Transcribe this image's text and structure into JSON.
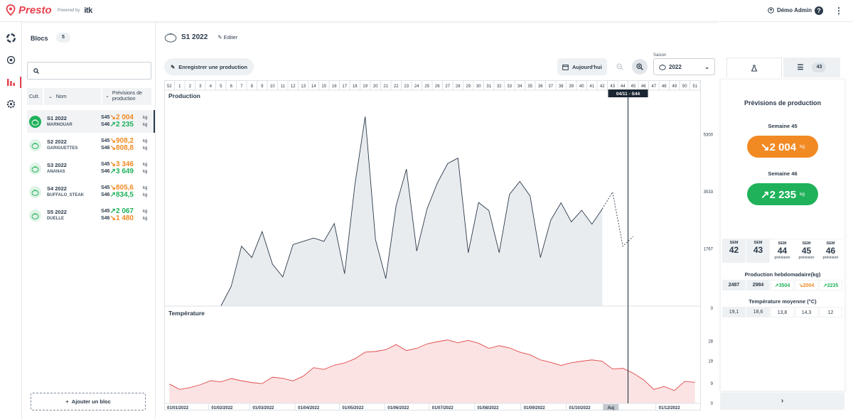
{
  "app": {
    "name": "Presto",
    "powered_by": "Powered by",
    "partner": "itk",
    "user": "Démo Admin",
    "help": "?",
    "menu": "⋮"
  },
  "blocs": {
    "title": "Blocs",
    "count": "5",
    "search_placeholder": "",
    "columns": {
      "cult": "Cult.",
      "name": "Nom",
      "forecast": "Prévisions de production"
    },
    "rows": [
      {
        "name": "S1 2022",
        "variety": "MARNOUAR",
        "w1": "S45",
        "v1": "↘2 004",
        "c1": "#f28a24",
        "w2": "S46",
        "v2": "↗2 235",
        "c2": "#1fb25a",
        "unit": "kg",
        "selected": true
      },
      {
        "name": "S2 2022",
        "variety": "GARIGUETTES",
        "w1": "S45",
        "v1": "↘908,2",
        "c1": "#f28a24",
        "w2": "S46",
        "v2": "↘808,8",
        "c2": "#f28a24",
        "unit": "kg",
        "selected": false
      },
      {
        "name": "S3 2022",
        "variety": "ANANAS",
        "w1": "S45",
        "v1": "↘3 346",
        "c1": "#f28a24",
        "w2": "S46",
        "v2": "↗3 649",
        "c2": "#1fb25a",
        "unit": "kg",
        "selected": false
      },
      {
        "name": "S4 2022",
        "variety": "BUFFALO_STEAK",
        "w1": "S45",
        "v1": "↘805,6",
        "c1": "#f28a24",
        "w2": "S46",
        "v2": "↗834,5",
        "c2": "#1fb25a",
        "unit": "kg",
        "selected": false
      },
      {
        "name": "S5 2022",
        "variety": "DUELLE",
        "w1": "S45",
        "v1": "↗2 067",
        "c1": "#1fb25a",
        "w2": "S46",
        "v2": "↘1 480",
        "c2": "#f28a24",
        "unit": "kg",
        "selected": false
      }
    ],
    "add_label": "Ajouter un bloc"
  },
  "main": {
    "title": "S1 2022",
    "edit_label": "Editer",
    "record_label": "Enregistrer une production",
    "today_label": "Aujourd'hui",
    "season_label": "Saison",
    "season_value": "2022"
  },
  "chart_data": {
    "type": "area",
    "week_ticks": [
      "52",
      "1",
      "2",
      "3",
      "4",
      "5",
      "6",
      "7",
      "8",
      "9",
      "10",
      "11",
      "12",
      "13",
      "14",
      "15",
      "16",
      "17",
      "18",
      "19",
      "20",
      "21",
      "22",
      "23",
      "24",
      "25",
      "26",
      "27",
      "28",
      "29",
      "30",
      "31",
      "32",
      "33",
      "34",
      "35",
      "36",
      "37",
      "38",
      "39",
      "40",
      "41",
      "42",
      "43",
      "44",
      "45",
      "46",
      "47",
      "48",
      "49",
      "50",
      "51"
    ],
    "cursor_label": "04/11 - S44",
    "production": {
      "title": "Production",
      "y_ticks": [
        "5300",
        "3533",
        "1767"
      ],
      "ylim": [
        0,
        6360
      ],
      "x_week_index": [
        0,
        1,
        2,
        3,
        4,
        5,
        6,
        7,
        8,
        9,
        10,
        11,
        12,
        13,
        14,
        15,
        16,
        17,
        18,
        19,
        20,
        21,
        22,
        23,
        24,
        25,
        26,
        27,
        28,
        29,
        30,
        31,
        32,
        33,
        34,
        35,
        36,
        37,
        38,
        39,
        40,
        41,
        42
      ],
      "values": [
        0,
        0,
        0,
        0,
        0,
        0,
        610,
        1850,
        1500,
        2300,
        1300,
        900,
        1900,
        2000,
        2100,
        2000,
        2550,
        1000,
        3750,
        5850,
        2050,
        850,
        3100,
        4230,
        1700,
        3000,
        3800,
        4400,
        4570,
        1650,
        3200,
        2950,
        1650,
        3450,
        3850,
        3400,
        1500,
        2650,
        3190,
        2600,
        2960,
        2530,
        3000
      ],
      "forecast_week_index": [
        42,
        43,
        44,
        45
      ],
      "forecast_values": [
        3000,
        3520,
        1850,
        2150
      ]
    },
    "temperature": {
      "title": "Température",
      "y_ticks": [
        "28",
        "19",
        "9",
        "0"
      ],
      "ylim": [
        0,
        40
      ],
      "x_week_index": [
        0,
        1,
        2,
        3,
        4,
        5,
        6,
        7,
        8,
        9,
        10,
        11,
        12,
        13,
        14,
        15,
        16,
        17,
        18,
        19,
        20,
        21,
        22,
        23,
        24,
        25,
        26,
        27,
        28,
        29,
        30,
        31,
        32,
        33,
        34,
        35,
        36,
        37,
        38,
        39,
        40,
        41,
        42,
        43,
        44,
        45,
        46,
        47,
        48,
        49,
        50,
        51
      ],
      "values": [
        8.7,
        6.3,
        7.1,
        8.4,
        10.2,
        9.7,
        11.2,
        10.2,
        9.4,
        8.9,
        11.8,
        11.3,
        10.1,
        12.3,
        16.1,
        15.3,
        17.2,
        18.2,
        20.1,
        23.1,
        23.4,
        24.2,
        26.5,
        23.8,
        24.8,
        26.8,
        27.8,
        28.6,
        27.3,
        28.4,
        27.1,
        24.8,
        26.0,
        25.0,
        23.1,
        21.9,
        19.6,
        18.5,
        17.1,
        18.3,
        19.0,
        19.6,
        19.0,
        15.5,
        15.8,
        13.6,
        10.7,
        6.3,
        7.6,
        5.8,
        9.9,
        9.5
      ],
      "x_month_labels": [
        "01/01/2022",
        "01/02/2022",
        "01/03/2022",
        "01/04/2022",
        "01/05/2022",
        "01/06/2022",
        "01/07/2022",
        "01/08/2022",
        "01/09/2022",
        "01/10/2022",
        "Auj",
        "01/12/2022"
      ],
      "x_month_week_index": [
        0,
        4.3,
        8.3,
        12.7,
        17,
        21.4,
        25.7,
        30.1,
        34.6,
        39,
        43.4,
        47.7
      ]
    },
    "colors": {
      "production_fill": "#e9ecef",
      "production_line": "#2b3a4a",
      "temp_fill": "#fbe3e4",
      "temp_line": "#e04848"
    }
  },
  "panel": {
    "list_count": "43",
    "title": "Prévisions de production",
    "week45_label": "Semaine 45",
    "week45_value": "↘2 004",
    "week46_label": "Semaine 46",
    "week46_value": "↗2 235",
    "unit": "kg",
    "sem_headers": [
      {
        "s": "SEM",
        "n": "42",
        "p": ""
      },
      {
        "s": "SEM",
        "n": "43",
        "p": ""
      },
      {
        "s": "SEM",
        "n": "44",
        "p": "prévision"
      },
      {
        "s": "SEM",
        "n": "45",
        "p": "prévision"
      },
      {
        "s": "SEM",
        "n": "46",
        "p": "prévision"
      }
    ],
    "prod_label": "Production hebdomadaire(kg)",
    "prod_values": [
      "2487",
      "2984",
      "↗3504",
      "↘2004",
      "↗2235"
    ],
    "temp_label": "Température moyenne (°C)",
    "temp_values": [
      "19,1",
      "18,6",
      "13,8",
      "14,3",
      "12"
    ],
    "next": "›",
    "colors": {
      "orange": "#f28a24",
      "green": "#1fb25a"
    }
  }
}
